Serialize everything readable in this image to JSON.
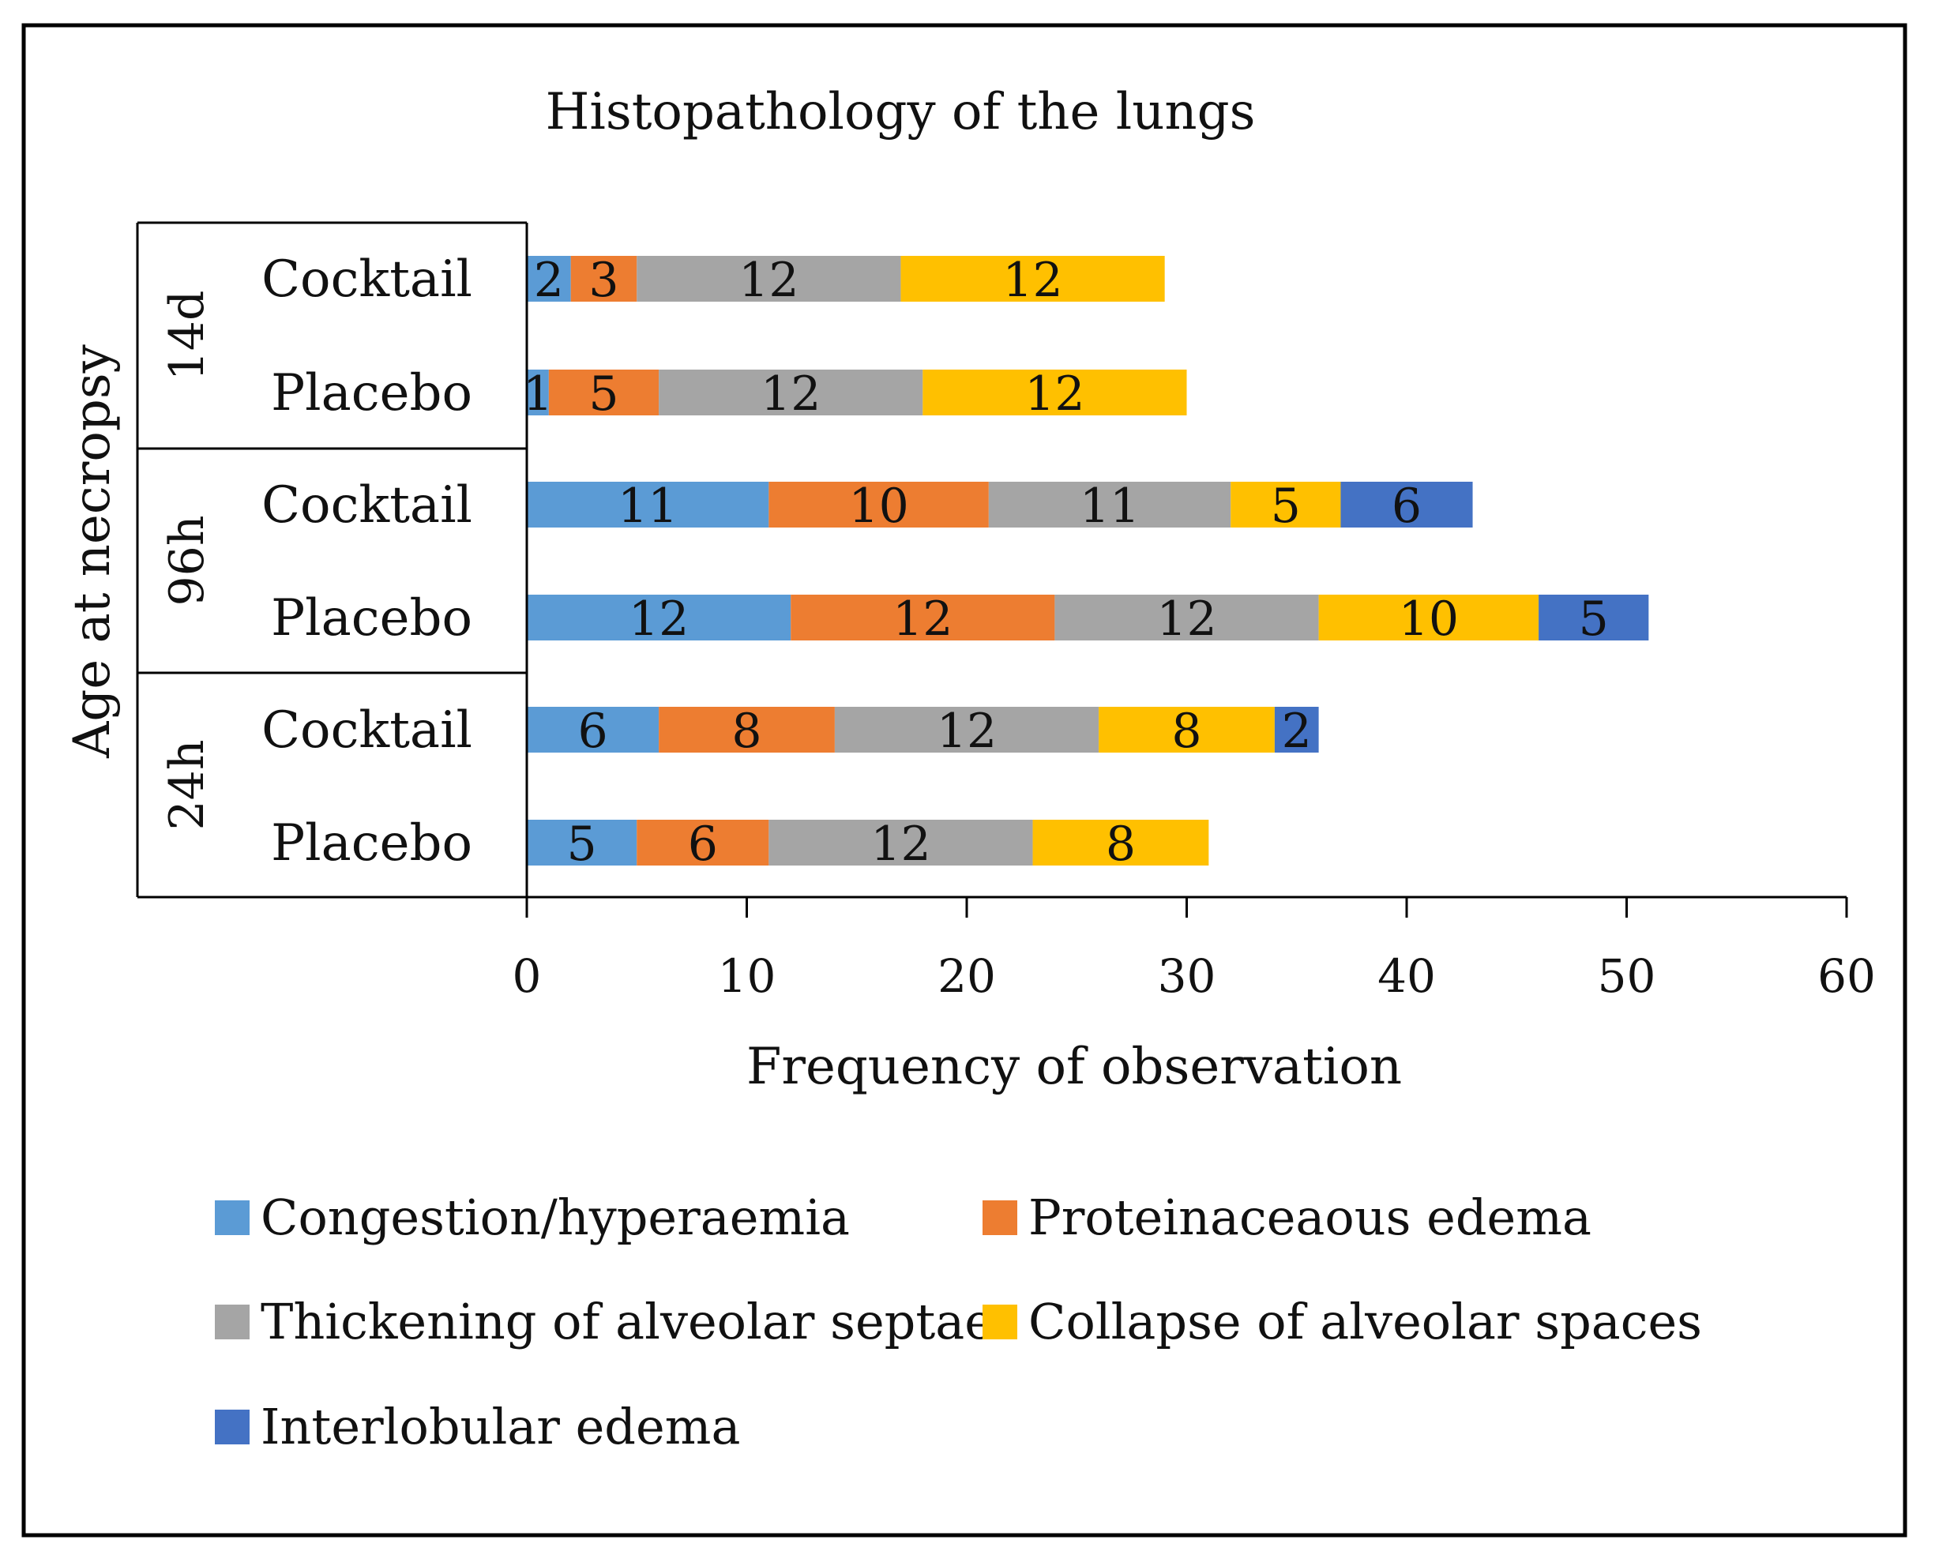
{
  "chart_data": {
    "type": "bar",
    "orientation": "horizontal",
    "stacked": true,
    "title": "Histopathology of the lungs",
    "xlabel": "Frequency of observation",
    "ylabel": "Age at necropsy",
    "xlim": [
      0,
      60
    ],
    "xticks": [
      "0",
      "10",
      "20",
      "30",
      "40",
      "50",
      "60"
    ],
    "grid": false,
    "legend_position": "bottom",
    "groups": [
      {
        "label": "14d",
        "rows": [
          "Cocktail",
          "Placebo"
        ]
      },
      {
        "label": "96h",
        "rows": [
          "Cocktail",
          "Placebo"
        ]
      },
      {
        "label": "24h",
        "rows": [
          "Cocktail",
          "Placebo"
        ]
      }
    ],
    "series": [
      {
        "name": "Congestion/hyperaemia",
        "color": "#5B9BD5",
        "values": [
          2,
          1,
          11,
          12,
          6,
          5
        ]
      },
      {
        "name": "Proteinaceaous edema",
        "color": "#ED7D31",
        "values": [
          3,
          5,
          10,
          12,
          8,
          6
        ]
      },
      {
        "name": "Thickening of alveolar septae",
        "color": "#A5A5A5",
        "values": [
          12,
          12,
          11,
          12,
          12,
          12
        ]
      },
      {
        "name": "Collapse of alveolar spaces",
        "color": "#FFC000",
        "values": [
          12,
          12,
          5,
          10,
          8,
          8
        ]
      },
      {
        "name": "Interlobular edema",
        "color": "#4472C4",
        "values": [
          0,
          0,
          6,
          5,
          2,
          0
        ]
      }
    ]
  }
}
